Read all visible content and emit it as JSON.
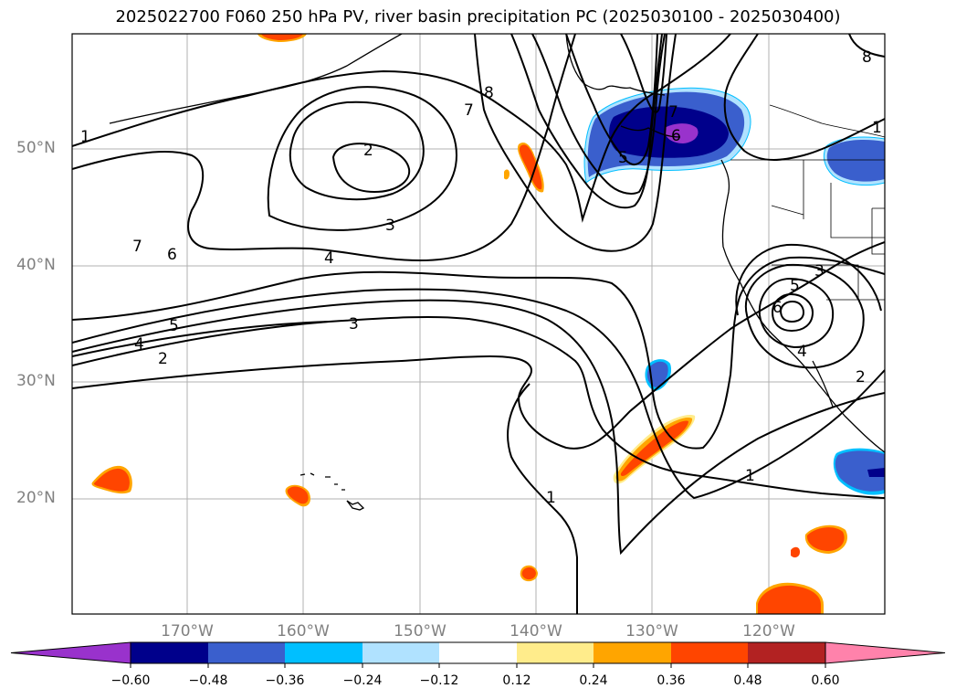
{
  "title": "2025022700 F060 250 hPa PV, river basin precipitation PC (2025030100 - 2025030400)",
  "lat_labels": [
    "50°N",
    "40°N",
    "30°N",
    "20°N"
  ],
  "lon_labels": [
    "170°W",
    "160°W",
    "150°W",
    "140°W",
    "130°W",
    "120°W"
  ],
  "contour_labels": [
    "1",
    "2",
    "3",
    "4",
    "5",
    "6",
    "7",
    "8",
    "7",
    "6",
    "5",
    "4",
    "3",
    "2",
    "1",
    "2",
    "3",
    "4",
    "5",
    "6",
    "1",
    "1",
    "8",
    "7"
  ],
  "colorbar": {
    "ticks": [
      "−0.60",
      "−0.48",
      "−0.36",
      "−0.24",
      "−0.12",
      "0.12",
      "0.24",
      "0.36",
      "0.48",
      "0.60"
    ],
    "colors": [
      "#9932cc",
      "#00008b",
      "#3a5fcd",
      "#00bfff",
      "#b0e2ff",
      "#ffffff",
      "#ffec8b",
      "#ffa500",
      "#ff4500",
      "#b22222",
      "#ff82ab"
    ]
  }
}
